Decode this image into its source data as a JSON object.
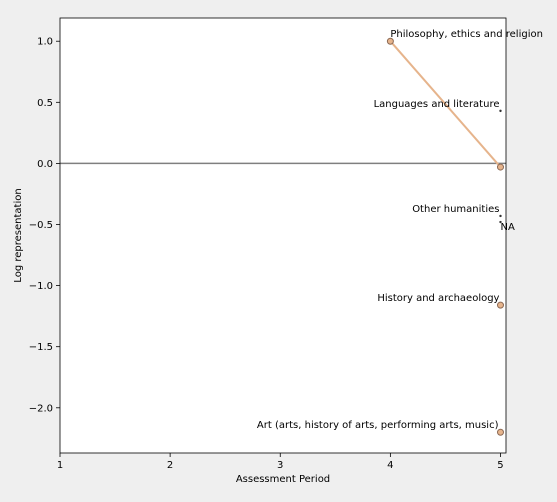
{
  "chart_data": {
    "type": "line",
    "title": "",
    "xlabel": "Assessment Period",
    "ylabel": "Log representation",
    "xlim": [
      1,
      5.05
    ],
    "ylim": [
      -2.37,
      1.19
    ],
    "x_ticks": [
      1,
      2,
      3,
      4,
      5
    ],
    "y_ticks": [
      1.0,
      0.5,
      0.0,
      -0.5,
      -1.0,
      -1.5,
      -2.0
    ],
    "x_tick_labels": [
      "1",
      "2",
      "3",
      "4",
      "5"
    ],
    "y_tick_labels": [
      "1.0",
      "0.5",
      "0.0",
      "−0.5",
      "−1.0",
      "−1.5",
      "−2.0"
    ],
    "reference_line_y": 0,
    "grid": false,
    "legend": "none",
    "series": [
      {
        "name": "Philosophy, ethics and religion",
        "points": [
          [
            4,
            1.0
          ],
          [
            5,
            -0.03
          ]
        ],
        "label_text": "Philosophy, ethics and religion",
        "marker": "circle",
        "line_color": "#e6b48c"
      },
      {
        "name": "Languages and literature",
        "points": [
          [
            5,
            0.43
          ]
        ],
        "label_text": "Languages and literature",
        "marker": "dot"
      },
      {
        "name": "Other humanities",
        "points": [
          [
            5,
            -0.43
          ]
        ],
        "label_text": "Other humanities",
        "marker": "dot"
      },
      {
        "name": "NA",
        "points": [
          [
            5,
            -0.48
          ]
        ],
        "label_text": "NA",
        "marker": "dot"
      },
      {
        "name": "History and archaeology",
        "points": [
          [
            5,
            -1.16
          ]
        ],
        "label_text": "History and archaeology",
        "marker": "circle"
      },
      {
        "name": "Art (arts, history of arts, performing arts, music)",
        "points": [
          [
            5,
            -2.2
          ]
        ],
        "label_text": "Art (arts, history of arts, performing arts, music)",
        "marker": "circle"
      }
    ]
  },
  "colors": {
    "background": "#efefef",
    "plot_background": "#ffffff",
    "reference_line": "#7f7f7f",
    "marker_fill": "#e6b48c",
    "marker_edge": "#8c6a55"
  }
}
